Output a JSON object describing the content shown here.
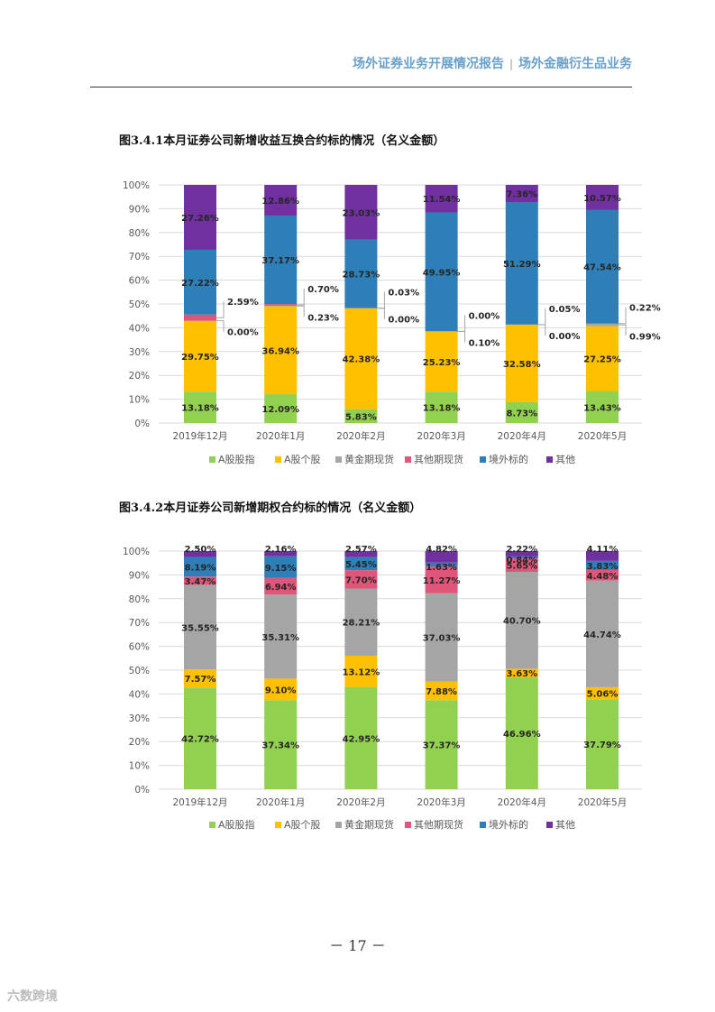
{
  "header": {
    "left": "场外证券业务开展情况报告",
    "separator": "|",
    "right": "场外金融衍生品业务"
  },
  "figures": {
    "fig1_title": "图3.4.1本月证券公司新增收益互换合约标的情况（名义金额）",
    "fig2_title": "图3.4.2本月证券公司新增期权合约标的情况（名义金额）"
  },
  "page_number": "－ 17 －",
  "watermark": "六数跨境",
  "chart_data": [
    {
      "type": "bar",
      "stacked": true,
      "title": "",
      "categories": [
        "2019年12月",
        "2020年1月",
        "2020年2月",
        "2020年3月",
        "2020年4月",
        "2020年5月"
      ],
      "yticks": [
        "0%",
        "10%",
        "20%",
        "30%",
        "40%",
        "50%",
        "60%",
        "70%",
        "80%",
        "90%",
        "100%"
      ],
      "ylim": [
        0,
        100
      ],
      "grid": true,
      "legend": "bottom",
      "series": [
        {
          "name": "A股股指",
          "color": "#92d050",
          "values": [
            13.18,
            12.09,
            5.83,
            13.18,
            8.73,
            13.43
          ],
          "labels": [
            "13.18%",
            "12.09%",
            "5.83%",
            "13.18%",
            "8.73%",
            "13.43%"
          ]
        },
        {
          "name": "A股个股",
          "color": "#ffc000",
          "values": [
            29.75,
            36.94,
            42.38,
            25.23,
            32.58,
            27.25
          ],
          "labels": [
            "29.75%",
            "36.94%",
            "42.38%",
            "25.23%",
            "32.58%",
            "27.25%"
          ]
        },
        {
          "name": "黄金期现货",
          "color": "#a5a5a5",
          "values": [
            0.0,
            0.23,
            0.0,
            0.1,
            0.0,
            0.99
          ],
          "labels": [
            "0.00%",
            "0.23%",
            "0.00%",
            "0.10%",
            "0.00%",
            "0.99%"
          ]
        },
        {
          "name": "其他期现货",
          "color": "#e0567a",
          "values": [
            2.59,
            0.7,
            0.03,
            0.0,
            0.05,
            0.22
          ],
          "labels": [
            "2.59%",
            "0.70%",
            "0.03%",
            "0.00%",
            "0.05%",
            "0.22%"
          ]
        },
        {
          "name": "境外标的",
          "color": "#2e7fb8",
          "values": [
            27.22,
            37.17,
            28.73,
            49.95,
            51.29,
            47.54
          ],
          "labels": [
            "27.22%",
            "37.17%",
            "28.73%",
            "49.95%",
            "51.29%",
            "47.54%"
          ]
        },
        {
          "name": "其他",
          "color": "#7030a0",
          "values": [
            27.26,
            12.86,
            23.03,
            11.54,
            7.36,
            10.57
          ],
          "labels": [
            "27.26%",
            "12.86%",
            "23.03%",
            "11.54%",
            "7.36%",
            "10.57%"
          ]
        }
      ]
    },
    {
      "type": "bar",
      "stacked": true,
      "title": "",
      "categories": [
        "2019年12月",
        "2020年1月",
        "2020年2月",
        "2020年3月",
        "2020年4月",
        "2020年5月"
      ],
      "yticks": [
        "0%",
        "10%",
        "20%",
        "30%",
        "40%",
        "50%",
        "60%",
        "70%",
        "80%",
        "90%",
        "100%"
      ],
      "ylim": [
        0,
        100
      ],
      "grid": true,
      "legend": "bottom",
      "series": [
        {
          "name": "A股股指",
          "color": "#92d050",
          "values": [
            42.72,
            37.34,
            42.95,
            37.37,
            46.96,
            37.79
          ],
          "labels": [
            "42.72%",
            "37.34%",
            "42.95%",
            "37.37%",
            "46.96%",
            "37.79%"
          ]
        },
        {
          "name": "A股个股",
          "color": "#ffc000",
          "values": [
            7.57,
            9.1,
            13.12,
            7.88,
            3.63,
            5.06
          ],
          "labels": [
            "7.57%",
            "9.10%",
            "13.12%",
            "7.88%",
            "3.63%",
            "5.06%"
          ]
        },
        {
          "name": "黄金期现货",
          "color": "#a5a5a5",
          "values": [
            35.55,
            35.31,
            28.21,
            37.03,
            40.7,
            44.74
          ],
          "labels": [
            "35.55%",
            "35.31%",
            "28.21%",
            "37.03%",
            "40.70%",
            "44.74%"
          ]
        },
        {
          "name": "其他期现货",
          "color": "#e0567a",
          "values": [
            3.47,
            6.94,
            7.7,
            11.27,
            5.65,
            4.48
          ],
          "labels": [
            "3.47%",
            "6.94%",
            "7.70%",
            "11.27%",
            "5.65%",
            "4.48%"
          ]
        },
        {
          "name": "境外标的",
          "color": "#2e7fb8",
          "values": [
            8.19,
            9.15,
            5.45,
            1.63,
            0.84,
            3.83
          ],
          "labels": [
            "8.19%",
            "9.15%",
            "5.45%",
            "1.63%",
            "0.84%",
            "3.83%"
          ]
        },
        {
          "name": "其他",
          "color": "#7030a0",
          "values": [
            2.5,
            2.16,
            2.57,
            4.82,
            2.22,
            4.11
          ],
          "labels": [
            "2.50%",
            "2.16%",
            "2.57%",
            "4.82%",
            "2.22%",
            "4.11%"
          ]
        }
      ]
    }
  ]
}
